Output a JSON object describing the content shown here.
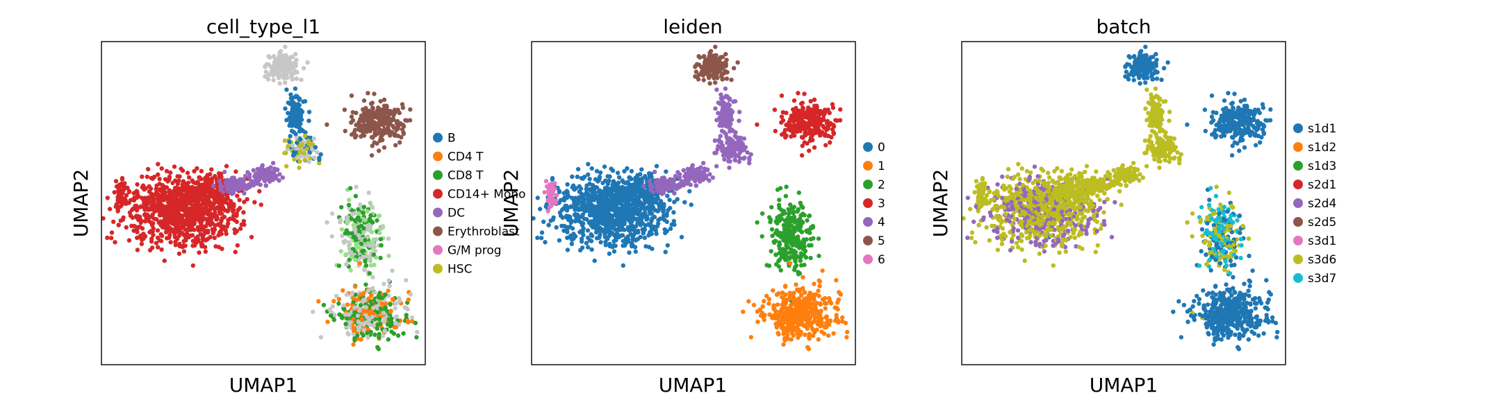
{
  "chart_data": [
    {
      "type": "scatter",
      "title": "cell_type_l1",
      "xlabel": "UMAP1",
      "ylabel": "UMAP2",
      "grid": false,
      "legend_position": "right",
      "categories": [
        {
          "label": "B",
          "color": "#1f77b4"
        },
        {
          "label": "CD4 T",
          "color": "#ff7f0e"
        },
        {
          "label": "CD8 T",
          "color": "#2ca02c"
        },
        {
          "label": "CD14+ Mono",
          "color": "#d62728"
        },
        {
          "label": "DC",
          "color": "#9467bd"
        },
        {
          "label": "Erythroblast",
          "color": "#8c564b"
        },
        {
          "label": "G/M prog",
          "color": "#e377c2"
        },
        {
          "label": "HSC",
          "color": "#bcbd22"
        }
      ],
      "extra_colors": [
        "#c7c7c7",
        "#ff9896",
        "#98df8a",
        "#aec7e8"
      ]
    },
    {
      "type": "scatter",
      "title": "leiden",
      "xlabel": "UMAP1",
      "ylabel": "UMAP2",
      "grid": false,
      "legend_position": "right",
      "categories": [
        {
          "label": "0",
          "color": "#1f77b4"
        },
        {
          "label": "1",
          "color": "#ff7f0e"
        },
        {
          "label": "2",
          "color": "#2ca02c"
        },
        {
          "label": "3",
          "color": "#d62728"
        },
        {
          "label": "4",
          "color": "#9467bd"
        },
        {
          "label": "5",
          "color": "#8c564b"
        },
        {
          "label": "6",
          "color": "#e377c2"
        }
      ]
    },
    {
      "type": "scatter",
      "title": "batch",
      "xlabel": "UMAP1",
      "ylabel": "UMAP2",
      "grid": false,
      "legend_position": "right",
      "categories": [
        {
          "label": "s1d1",
          "color": "#1f77b4"
        },
        {
          "label": "s1d2",
          "color": "#ff7f0e"
        },
        {
          "label": "s1d3",
          "color": "#2ca02c"
        },
        {
          "label": "s2d1",
          "color": "#d62728"
        },
        {
          "label": "s2d4",
          "color": "#9467bd"
        },
        {
          "label": "s2d5",
          "color": "#8c564b"
        },
        {
          "label": "s3d1",
          "color": "#e377c2"
        },
        {
          "label": "s3d6",
          "color": "#bcbd22"
        },
        {
          "label": "s3d7",
          "color": "#17becf"
        }
      ]
    }
  ]
}
